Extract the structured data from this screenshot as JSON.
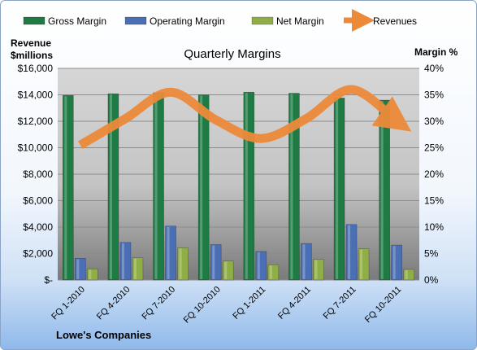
{
  "chart_data": {
    "type": "bar",
    "title": "Quarterly Margins",
    "company": "Lowe's Companies",
    "categories": [
      "FQ 1-2010",
      "FQ 4-2010",
      "FQ 7-2010",
      "FQ 10-2010",
      "FQ 1-2011",
      "FQ 4-2011",
      "FQ 7-2011",
      "FQ 10-2011"
    ],
    "y_left": {
      "label_line1": "Revenue",
      "label_line2": "$millions",
      "min": 0,
      "max": 16000,
      "step": 2000,
      "tick_labels": [
        "$-",
        "$2,000",
        "$4,000",
        "$6,000",
        "$8,000",
        "$10,000",
        "$12,000",
        "$14,000",
        "$16,000"
      ]
    },
    "y_right": {
      "label": "Margin %",
      "min": 0,
      "max": 40,
      "step": 5,
      "tick_labels": [
        "0%",
        "5%",
        "10%",
        "15%",
        "20%",
        "25%",
        "30%",
        "35%",
        "40%"
      ]
    },
    "series": [
      {
        "name": "Gross Margin",
        "kind": "bar",
        "axis": "right",
        "color": "#1e7b44",
        "values": [
          34.9,
          35.2,
          35.4,
          35.0,
          35.5,
          35.3,
          34.4,
          34.0
        ]
      },
      {
        "name": "Operating Margin",
        "kind": "bar",
        "axis": "right",
        "color": "#4a6fb5",
        "values": [
          4.1,
          7.1,
          10.2,
          6.7,
          5.4,
          6.9,
          10.5,
          6.6
        ]
      },
      {
        "name": "Net Margin",
        "kind": "bar",
        "axis": "right",
        "color": "#8fae45",
        "values": [
          2.1,
          4.2,
          6.1,
          3.6,
          2.9,
          3.9,
          5.9,
          2.0
        ]
      },
      {
        "name": "Revenues",
        "kind": "line",
        "axis": "left",
        "color": "#ed8a3a",
        "values": [
          10200,
          12200,
          14200,
          12100,
          10700,
          12200,
          14400,
          12000
        ]
      }
    ],
    "grid": true,
    "legend_position": "top"
  }
}
